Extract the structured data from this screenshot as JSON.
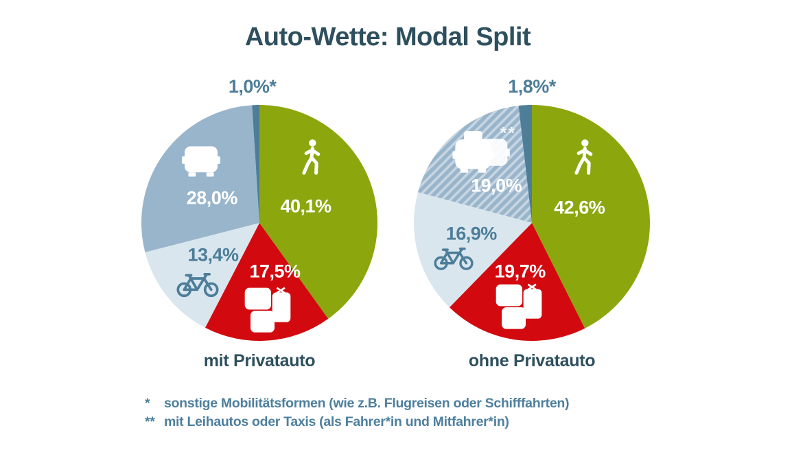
{
  "title": "Auto-Wette: Modal Split",
  "footnotes": [
    {
      "marker": "*",
      "text": "sonstige Mobilitätsformen (wie z.B. Flugreisen oder Schifffahrten)"
    },
    {
      "marker": "**",
      "text": "mit Leihautos oder Taxis (als Fahrer*in und Mitfahrer*in)"
    }
  ],
  "colors": {
    "background": "#ffffff",
    "title_text": "#2e4f5d",
    "caption_text": "#2e4f5d",
    "outside_label_text": "#4d7d99",
    "footnote_text": "#4e7f9d",
    "walk_green": "#8ca60e",
    "transit_red": "#d20a10",
    "car_bluegray": "#99b5cb",
    "bike_lightblue": "#d9e6ee",
    "other_sliver_blue": "#4e7d98",
    "white": "#ffffff"
  },
  "chart_data": [
    {
      "type": "pie",
      "caption": "mit Privatauto",
      "outside_label": "1,0%*",
      "outside_label_x": 47,
      "start_angle_deg": 0,
      "direction": "clockwise",
      "slices": [
        {
          "name": "zu Fuß",
          "value": 40.1,
          "label": "40,1%",
          "color": "#8ca60e",
          "label_color": "#ffffff",
          "icon": "pedestrian-icon",
          "label_pos": [
            69.5,
            43
          ],
          "icon_pos": [
            72,
            22.5
          ],
          "icon_size": [
            34,
            58
          ]
        },
        {
          "name": "ÖPNV",
          "value": 17.5,
          "label": "17,5%",
          "color": "#d20a10",
          "label_color": "#ffffff",
          "icon": "transit-icon",
          "label_pos": [
            56.5,
            70.5
          ],
          "icon_pos": [
            53.5,
            87
          ],
          "icon_size": [
            72,
            70
          ]
        },
        {
          "name": "Fahrrad",
          "value": 13.4,
          "label": "13,4%",
          "color": "#d9e6ee",
          "label_color": "#4d7d99",
          "icon": "bicycle-icon",
          "icon_color": "#4d7d99",
          "label_pos": [
            30.5,
            63.5
          ],
          "icon_pos": [
            24,
            75.5
          ],
          "icon_size": [
            62,
            42
          ]
        },
        {
          "name": "Privatauto",
          "value": 28.0,
          "label": "28,0%",
          "color": "#99b5cb",
          "label_color": "#ffffff",
          "icon": "car-icon",
          "label_pos": [
            30,
            39.5
          ],
          "icon_pos": [
            25.5,
            24
          ],
          "icon_size": [
            56,
            48
          ]
        },
        {
          "name": "sonstige",
          "value": 1.0,
          "label": "",
          "color": "#4e7d98"
        }
      ]
    },
    {
      "type": "pie",
      "caption": "ohne Privatauto",
      "outside_label": "1,8%*",
      "outside_label_x": 50,
      "start_angle_deg": 0,
      "direction": "clockwise",
      "slices": [
        {
          "name": "zu Fuß",
          "value": 42.6,
          "label": "42,6%",
          "color": "#8ca60e",
          "label_color": "#ffffff",
          "icon": "pedestrian-icon",
          "label_pos": [
            70,
            43.5
          ],
          "icon_pos": [
            72,
            22.5
          ],
          "icon_size": [
            34,
            58
          ]
        },
        {
          "name": "ÖPNV",
          "value": 19.7,
          "label": "19,7%",
          "color": "#d20a10",
          "label_color": "#ffffff",
          "icon": "transit-icon",
          "label_pos": [
            45,
            70.5
          ],
          "icon_pos": [
            44.5,
            85.5
          ],
          "icon_size": [
            72,
            70
          ]
        },
        {
          "name": "Fahrrad",
          "value": 16.9,
          "label": "16,9%",
          "color": "#d9e6ee",
          "label_color": "#4d7d99",
          "icon": "bicycle-icon",
          "icon_color": "#4d7d99",
          "label_pos": [
            24.5,
            54.5
          ],
          "icon_pos": [
            17,
            64.5
          ],
          "icon_size": [
            58,
            40
          ]
        },
        {
          "name": "Leihauto/Taxi",
          "value": 19.0,
          "label": "19,0%",
          "color": "#99b5cb",
          "label_color": "#ffffff",
          "icon": "taxi-icon",
          "hatch": true,
          "annotation": "**",
          "annotation_pos": [
            40,
            12.5
          ],
          "label_pos": [
            35,
            34.5
          ],
          "icon_pos": [
            28.5,
            20.5
          ],
          "icon_size": [
            86,
            66
          ]
        },
        {
          "name": "sonstige",
          "value": 1.8,
          "label": "",
          "color": "#4e7d98"
        }
      ]
    }
  ]
}
